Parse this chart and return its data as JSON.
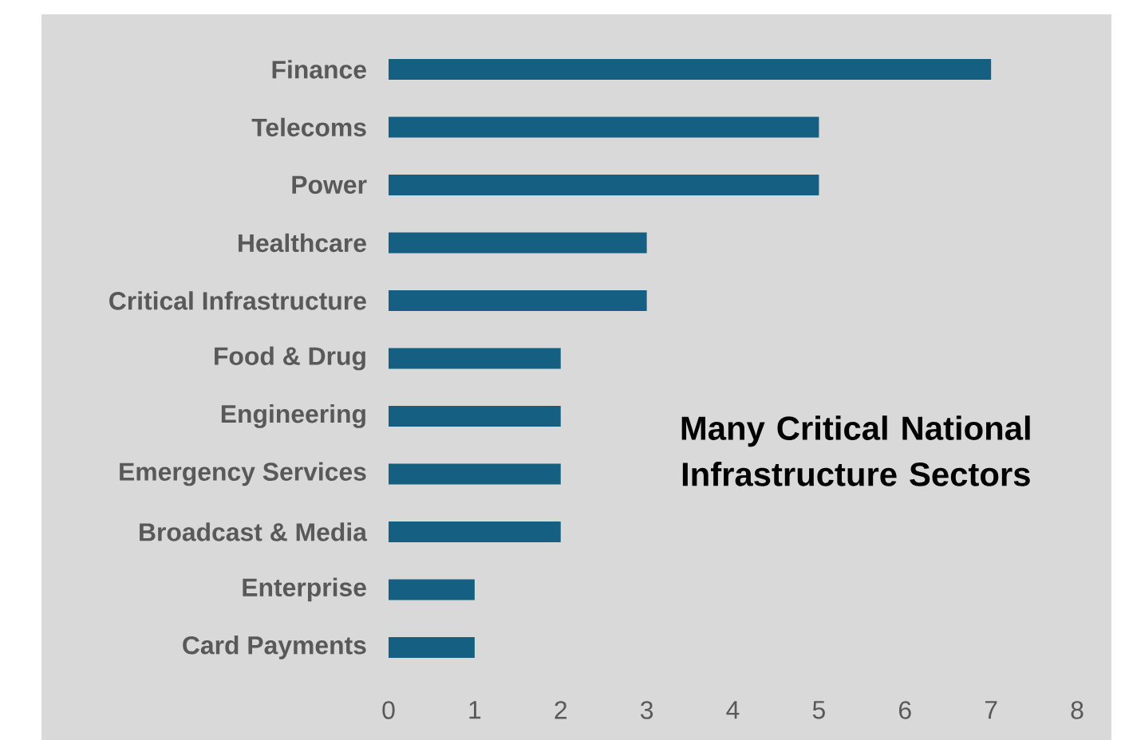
{
  "chart_data": {
    "type": "bar",
    "orientation": "horizontal",
    "title": "Many Critical National Infrastructure Sectors",
    "categories": [
      "Finance",
      "Telecoms",
      "Power",
      "Healthcare",
      "Critical Infrastructure",
      "Food & Drug",
      "Engineering",
      "Emergency Services",
      "Broadcast & Media",
      "Enterprise",
      "Card Payments"
    ],
    "values": [
      7,
      5,
      5,
      3,
      3,
      2,
      2,
      2,
      2,
      1,
      1
    ],
    "color": "#155f82",
    "xlim": [
      0,
      8
    ],
    "xticks": [
      0,
      1,
      2,
      3,
      4,
      5,
      6,
      7,
      8
    ]
  }
}
